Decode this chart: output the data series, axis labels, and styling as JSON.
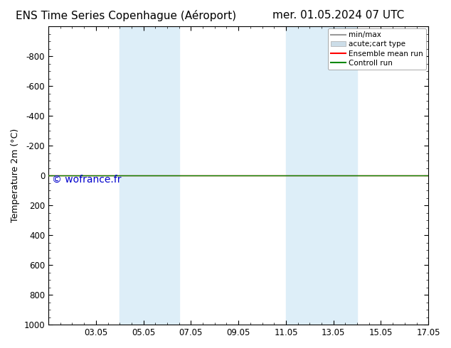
{
  "title_left": "ENS Time Series Copenhague (Éroport)",
  "title_right": "mer. 01.05.2024 07 UTC",
  "ylabel": "Temperature 2m (°C)",
  "ylim_top": -1000,
  "ylim_bottom": 1000,
  "xlim_left": 0.0,
  "xlim_right": 16.0,
  "xtick_labels": [
    "03.05",
    "05.05",
    "07.05",
    "09.05",
    "11.05",
    "13.05",
    "15.05",
    "17.05"
  ],
  "xtick_positions": [
    2,
    4,
    6,
    8,
    10,
    12,
    14,
    16
  ],
  "ytick_positions": [
    -800,
    -600,
    -400,
    -200,
    0,
    200,
    400,
    600,
    800,
    1000
  ],
  "shade_bands": [
    {
      "x_start": 3.0,
      "x_end": 4.2
    },
    {
      "x_start": 4.2,
      "x_end": 5.5
    },
    {
      "x_start": 10.0,
      "x_end": 11.5
    },
    {
      "x_start": 11.5,
      "x_end": 13.0
    }
  ],
  "shade_color": "#ddeef8",
  "green_line_y": 0,
  "red_line_y": 0,
  "watermark": "© wofrance.fr",
  "watermark_color": "#0000cc",
  "watermark_fontsize": 10,
  "legend_labels": [
    "min/max",
    "acute;cart type",
    "Ensemble mean run",
    "Controll run"
  ],
  "legend_colors": [
    "#999999",
    "#ccddee",
    "#ff0000",
    "#00aa00"
  ],
  "bg_color": "#ffffff",
  "title_fontsize": 11,
  "tick_fontsize": 8.5,
  "ylabel_fontsize": 9
}
